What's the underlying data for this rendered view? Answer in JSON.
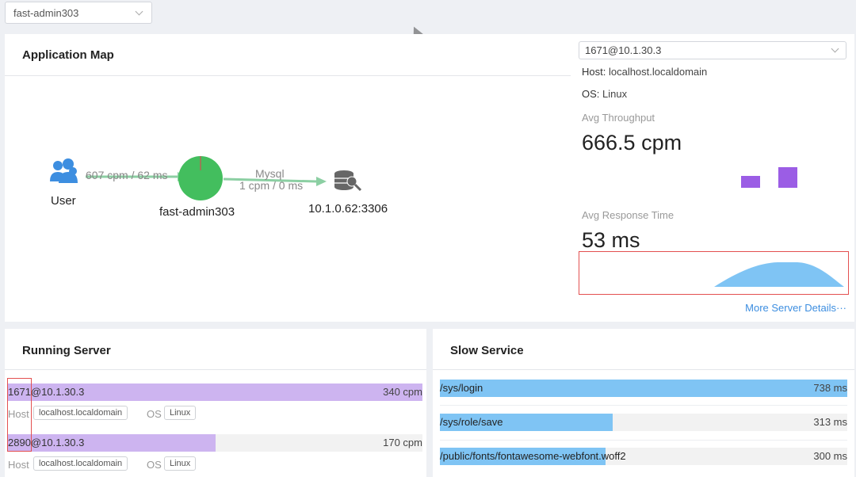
{
  "app_select": {
    "value": "fast-admin303"
  },
  "app_map": {
    "title": "Application Map",
    "nodes": {
      "user": "User",
      "service": "fast-admin303",
      "database": "10.1.0.62:3306"
    },
    "edges": {
      "user_to_service": "607 cpm / 62 ms",
      "service_to_db_type": "Mysql",
      "service_to_db_stats": "1 cpm / 0 ms"
    },
    "colors": {
      "service_node": "#43be5e",
      "edge": "#8ccfa3",
      "user_icon": "#3d8ee0",
      "db_icon": "#666666"
    }
  },
  "server_panel": {
    "selected_server": "1671@10.1.30.3",
    "host_label": "Host:",
    "host_value": "localhost.localdomain",
    "os_label": "OS:",
    "os_value": "Linux",
    "throughput_label": "Avg Throughput",
    "throughput_value": "666.5 cpm",
    "response_label": "Avg Response Time",
    "response_value": "53 ms",
    "more_link": "More Server Details···",
    "bar_color": "#9b5de5",
    "area_color": "#7fc4f4"
  },
  "running_server": {
    "title": "Running Server",
    "host_key": "Host",
    "os_key": "OS",
    "rows": [
      {
        "name": "1671@10.1.30.3",
        "value": "340 cpm",
        "fraction": 1.0,
        "host": "localhost.localdomain",
        "os": "Linux"
      },
      {
        "name": "2890@10.1.30.3",
        "value": "170 cpm",
        "fraction": 0.5,
        "host": "localhost.localdomain",
        "os": "Linux"
      }
    ]
  },
  "slow_service": {
    "title": "Slow Service",
    "rows": [
      {
        "name": "/sys/login",
        "value": "738 ms",
        "fraction": 1.0
      },
      {
        "name": "/sys/role/save",
        "value": "313 ms",
        "fraction": 0.424
      },
      {
        "name": "/public/fonts/fontawesome-webfont.woff2",
        "value": "300 ms",
        "fraction": 0.406
      }
    ]
  }
}
